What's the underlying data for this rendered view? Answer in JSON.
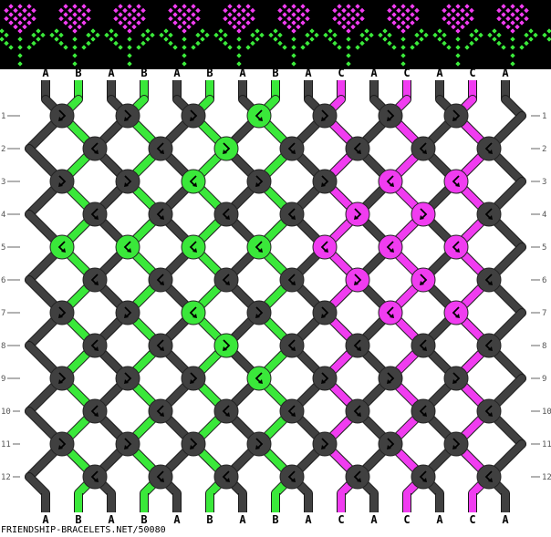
{
  "colors": {
    "A": "#404040",
    "B": "#3ae83a",
    "C": "#f03cf0",
    "outline": "#1a1a1a",
    "background": "#ffffff",
    "band": "#000000"
  },
  "preview": {
    "flower_head": "#f03cf0",
    "flower_stem": "#3ae83a"
  },
  "strings_top": [
    "A",
    "B",
    "A",
    "B",
    "A",
    "B",
    "A",
    "B",
    "A",
    "C",
    "A",
    "C",
    "A",
    "C",
    "A"
  ],
  "strings_bottom": [
    "A",
    "B",
    "A",
    "B",
    "A",
    "B",
    "A",
    "B",
    "A",
    "C",
    "A",
    "C",
    "A",
    "C",
    "A"
  ],
  "knot_legend": {
    "f": "forward-backward",
    "b": "backward-forward"
  },
  "knot_rows": [
    [
      "f",
      "f",
      "f",
      "b",
      "f",
      "f",
      "f"
    ],
    [
      "b",
      "b",
      "f",
      "b",
      "b",
      "b",
      "b"
    ],
    [
      "f",
      "f",
      "b",
      "f",
      "f",
      "b",
      "b"
    ],
    [
      "b",
      "b",
      "b",
      "b",
      "f",
      "f",
      "b"
    ],
    [
      "b",
      "b",
      "b",
      "b",
      "b",
      "b",
      "b"
    ],
    [
      "b",
      "b",
      "b",
      "b",
      "f",
      "f",
      "b"
    ],
    [
      "f",
      "f",
      "b",
      "f",
      "f",
      "b",
      "b"
    ],
    [
      "b",
      "b",
      "f",
      "b",
      "b",
      "b",
      "b"
    ],
    [
      "f",
      "f",
      "f",
      "b",
      "f",
      "f",
      "f"
    ],
    [
      "b",
      "b",
      "b",
      "b",
      "b",
      "b",
      "b"
    ],
    [
      "f",
      "f",
      "f",
      "f",
      "f",
      "f",
      "f"
    ],
    [
      "b",
      "b",
      "b",
      "b",
      "b",
      "b",
      "b"
    ]
  ],
  "row_numbers": [
    "1",
    "2",
    "3",
    "4",
    "5",
    "6",
    "7",
    "8",
    "9",
    "10",
    "11",
    "12"
  ],
  "footer": "FRIENDSHIP-BRACELETS.NET/50080"
}
